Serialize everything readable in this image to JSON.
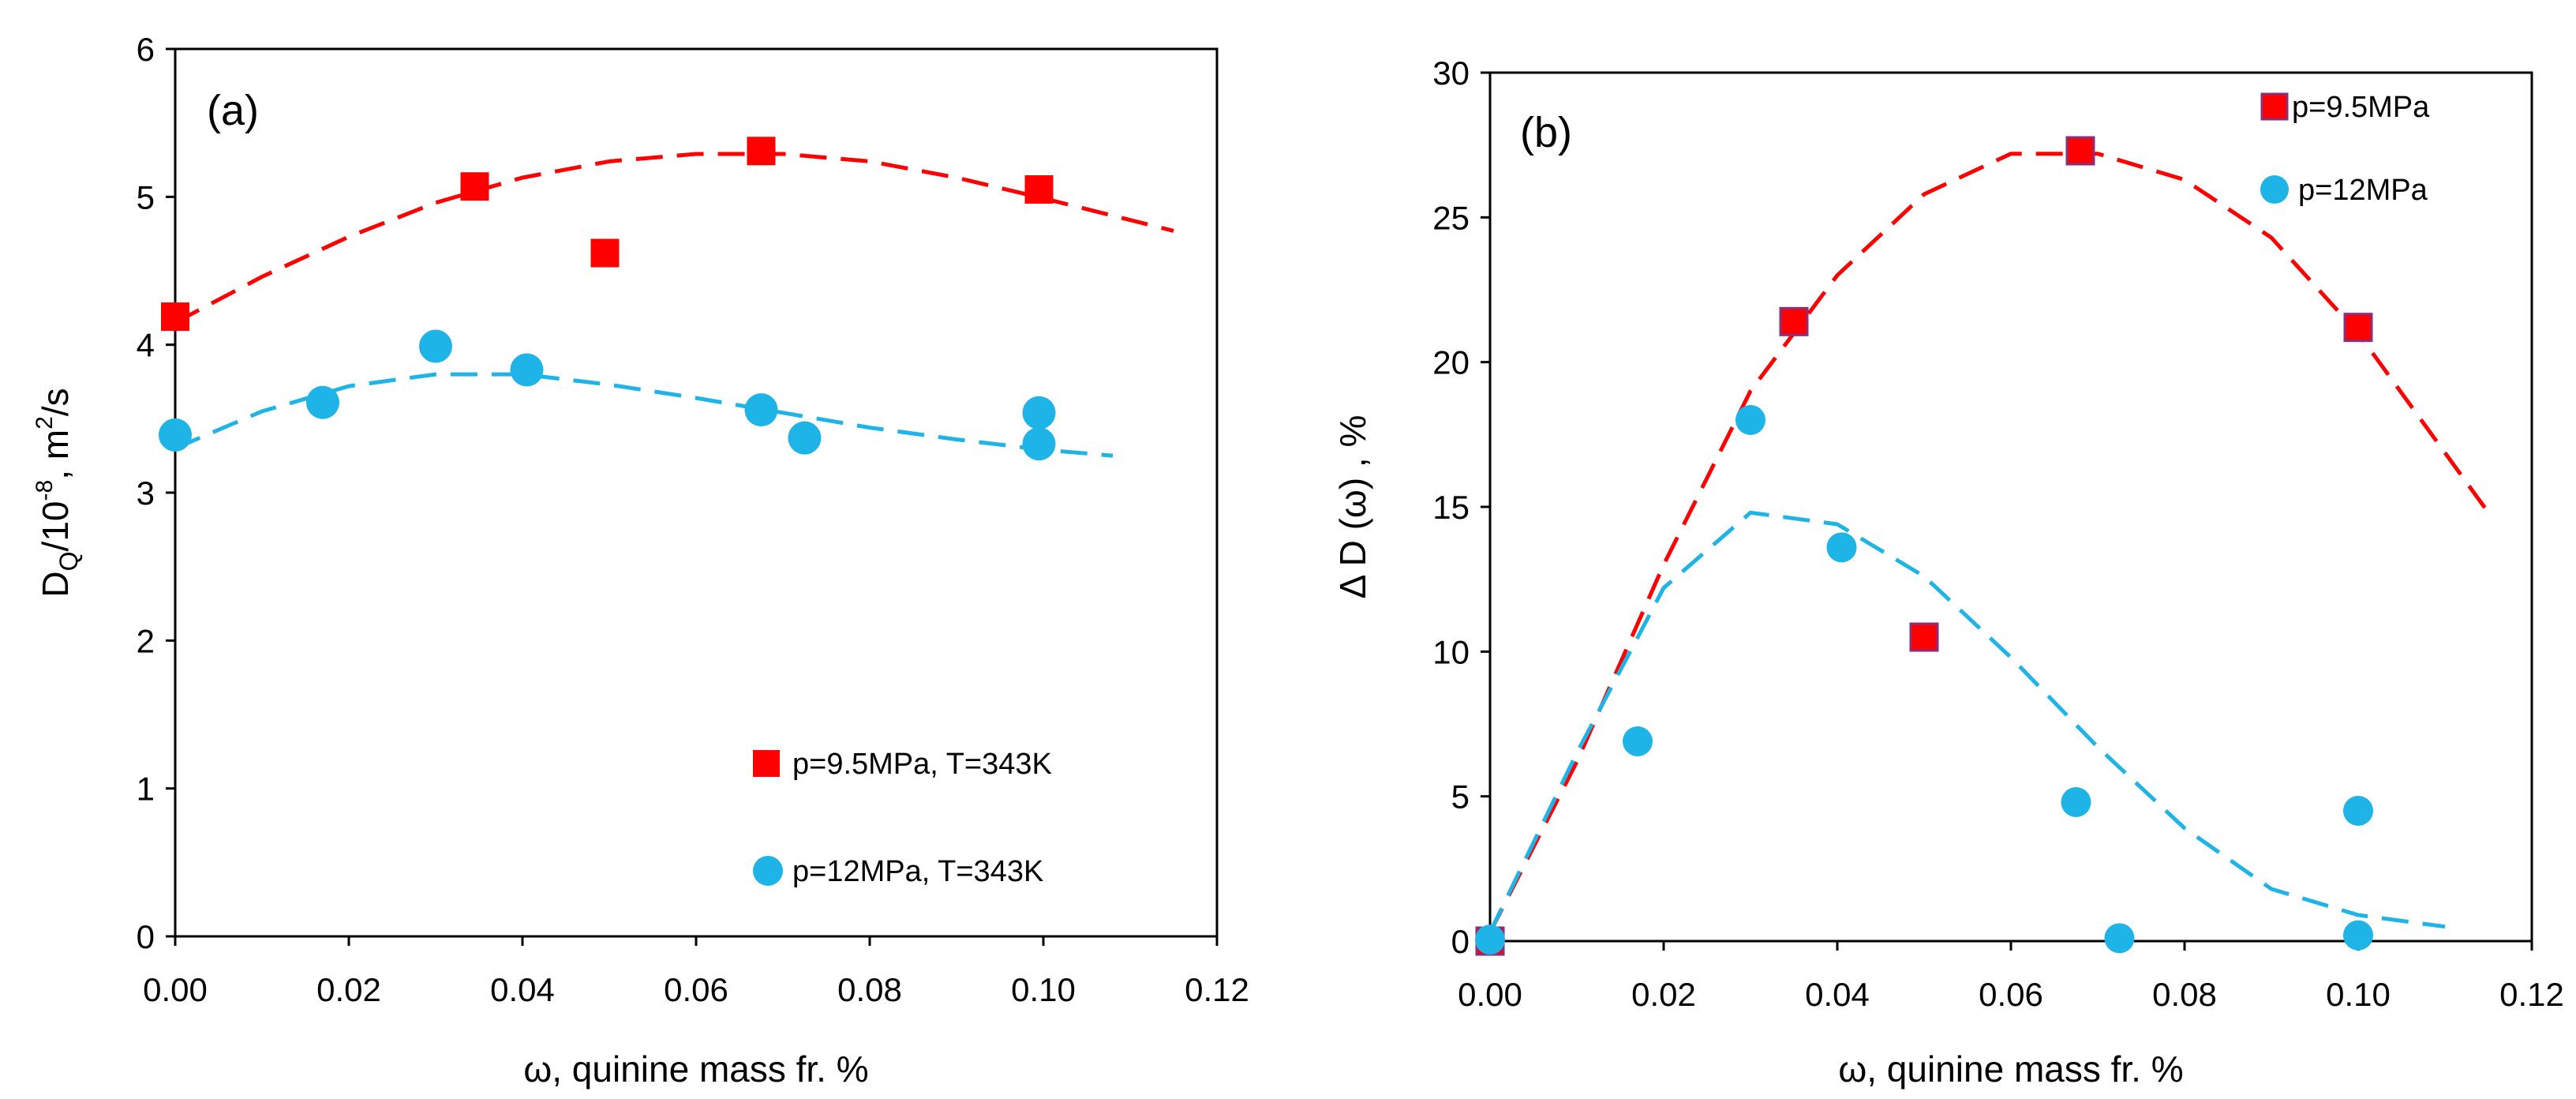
{
  "colors": {
    "series_red": "#ff0000",
    "series_red_edge": "#8b2f7a",
    "series_blue": "#1eb4e8"
  },
  "chart_data": [
    {
      "type": "scatter",
      "panel_label": "(a)",
      "xlabel": "ω, quinine mass fr. %",
      "ylabel_main": "D",
      "ylabel_sub": "Q",
      "ylabel_mid": "/10",
      "ylabel_sup": "-8",
      "ylabel_tail": ", m",
      "ylabel_sup2": "2",
      "ylabel_end": "/s",
      "xlim": [
        0,
        0.12
      ],
      "ylim": [
        0,
        6
      ],
      "xticks": [
        "0.00",
        "0.02",
        "0.04",
        "0.06",
        "0.08",
        "0.10",
        "0.12"
      ],
      "yticks": [
        "0",
        "1",
        "2",
        "3",
        "4",
        "5",
        "6"
      ],
      "legend_position": "bottom-right",
      "series": [
        {
          "name": "p=9.5MPa, T=343K",
          "marker": "square",
          "color": "#ff0000",
          "x": [
            0.0,
            0.0345,
            0.0495,
            0.0675,
            0.0995
          ],
          "y": [
            4.19,
            5.07,
            4.62,
            5.31,
            5.05
          ],
          "fit_x": [
            0.0,
            0.01,
            0.02,
            0.03,
            0.04,
            0.05,
            0.06,
            0.07,
            0.08,
            0.09,
            0.1,
            0.115
          ],
          "fit_y": [
            4.15,
            4.46,
            4.73,
            4.96,
            5.13,
            5.24,
            5.29,
            5.29,
            5.24,
            5.13,
            4.99,
            4.77
          ]
        },
        {
          "name": "p=12MPa, T=343K",
          "marker": "circle",
          "color": "#1eb4e8",
          "x": [
            0.0,
            0.017,
            0.03,
            0.0405,
            0.0675,
            0.0725,
            0.0995,
            0.0995
          ],
          "y": [
            3.39,
            3.61,
            3.99,
            3.83,
            3.56,
            3.37,
            3.54,
            3.33
          ],
          "fit_x": [
            0.0,
            0.01,
            0.02,
            0.03,
            0.04,
            0.05,
            0.06,
            0.07,
            0.08,
            0.09,
            0.1,
            0.108
          ],
          "fit_y": [
            3.3,
            3.55,
            3.72,
            3.8,
            3.8,
            3.73,
            3.64,
            3.54,
            3.44,
            3.36,
            3.29,
            3.25
          ]
        }
      ]
    },
    {
      "type": "scatter",
      "panel_label": "(b)",
      "xlabel": "ω, quinine mass fr. %",
      "ylabel": "Δ D (ω) , %",
      "xlim": [
        0,
        0.12
      ],
      "ylim": [
        0,
        30
      ],
      "xticks": [
        "0.00",
        "0.02",
        "0.04",
        "0.06",
        "0.08",
        "0.10",
        "0.12"
      ],
      "yticks": [
        "0",
        "5",
        "10",
        "15",
        "20",
        "25",
        "30"
      ],
      "legend_position": "top-right",
      "series": [
        {
          "name": "p=9.5MPa",
          "marker": "square",
          "color": "#ff0000",
          "x": [
            0.0,
            0.035,
            0.05,
            0.068,
            0.1
          ],
          "y": [
            0.0,
            21.4,
            10.5,
            27.3,
            21.2
          ],
          "fit_x": [
            0.0,
            0.01,
            0.02,
            0.03,
            0.04,
            0.05,
            0.06,
            0.07,
            0.08,
            0.09,
            0.1,
            0.115
          ],
          "fit_y": [
            0.3,
            6.2,
            13.0,
            19.0,
            23.0,
            25.8,
            27.2,
            27.2,
            26.3,
            24.3,
            21.0,
            14.8
          ]
        },
        {
          "name": "p=12MPa",
          "marker": "circle",
          "color": "#1eb4e8",
          "x": [
            0.0,
            0.017,
            0.03,
            0.0405,
            0.0675,
            0.0725,
            0.1,
            0.1
          ],
          "y": [
            0.05,
            6.9,
            18.0,
            13.6,
            4.8,
            0.1,
            4.5,
            0.2
          ],
          "fit_x": [
            0.0,
            0.01,
            0.02,
            0.03,
            0.04,
            0.05,
            0.06,
            0.07,
            0.08,
            0.09,
            0.1,
            0.11
          ],
          "fit_y": [
            0.3,
            6.5,
            12.2,
            14.8,
            14.4,
            12.6,
            9.8,
            6.7,
            3.9,
            1.8,
            0.9,
            0.5
          ]
        }
      ]
    }
  ]
}
